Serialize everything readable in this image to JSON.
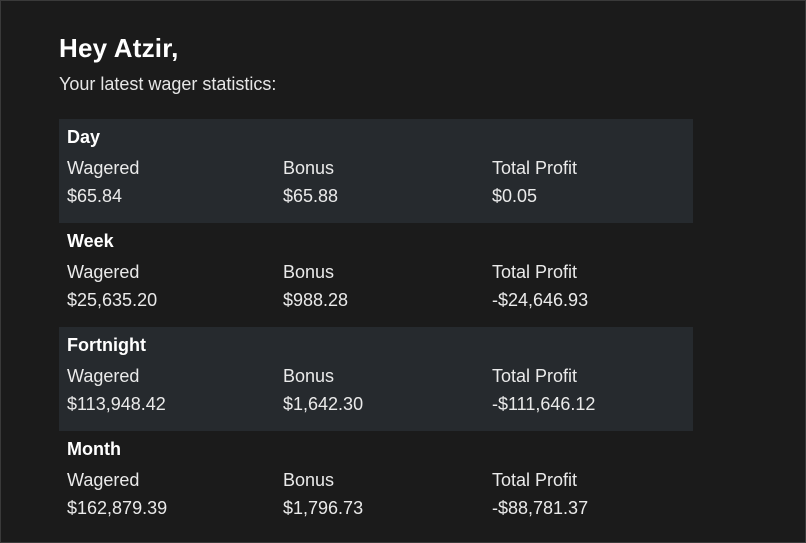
{
  "greeting": "Hey Atzir,",
  "subtitle": "Your latest wager statistics:",
  "labels": {
    "wagered": "Wagered",
    "bonus": "Bonus",
    "total_profit": "Total Profit"
  },
  "periods": [
    {
      "name": "Day",
      "wagered": "$65.84",
      "bonus": "$65.88",
      "total_profit": "$0.05"
    },
    {
      "name": "Week",
      "wagered": "$25,635.20",
      "bonus": "$988.28",
      "total_profit": "-$24,646.93"
    },
    {
      "name": "Fortnight",
      "wagered": "$113,948.42",
      "bonus": "$1,642.30",
      "total_profit": "-$111,646.12"
    },
    {
      "name": "Month",
      "wagered": "$162,879.39",
      "bonus": "$1,796.73",
      "total_profit": "-$88,781.37"
    }
  ],
  "colors": {
    "background": "#1b1b1b",
    "shaded_row": "#262a2e",
    "text": "#ffffff"
  }
}
